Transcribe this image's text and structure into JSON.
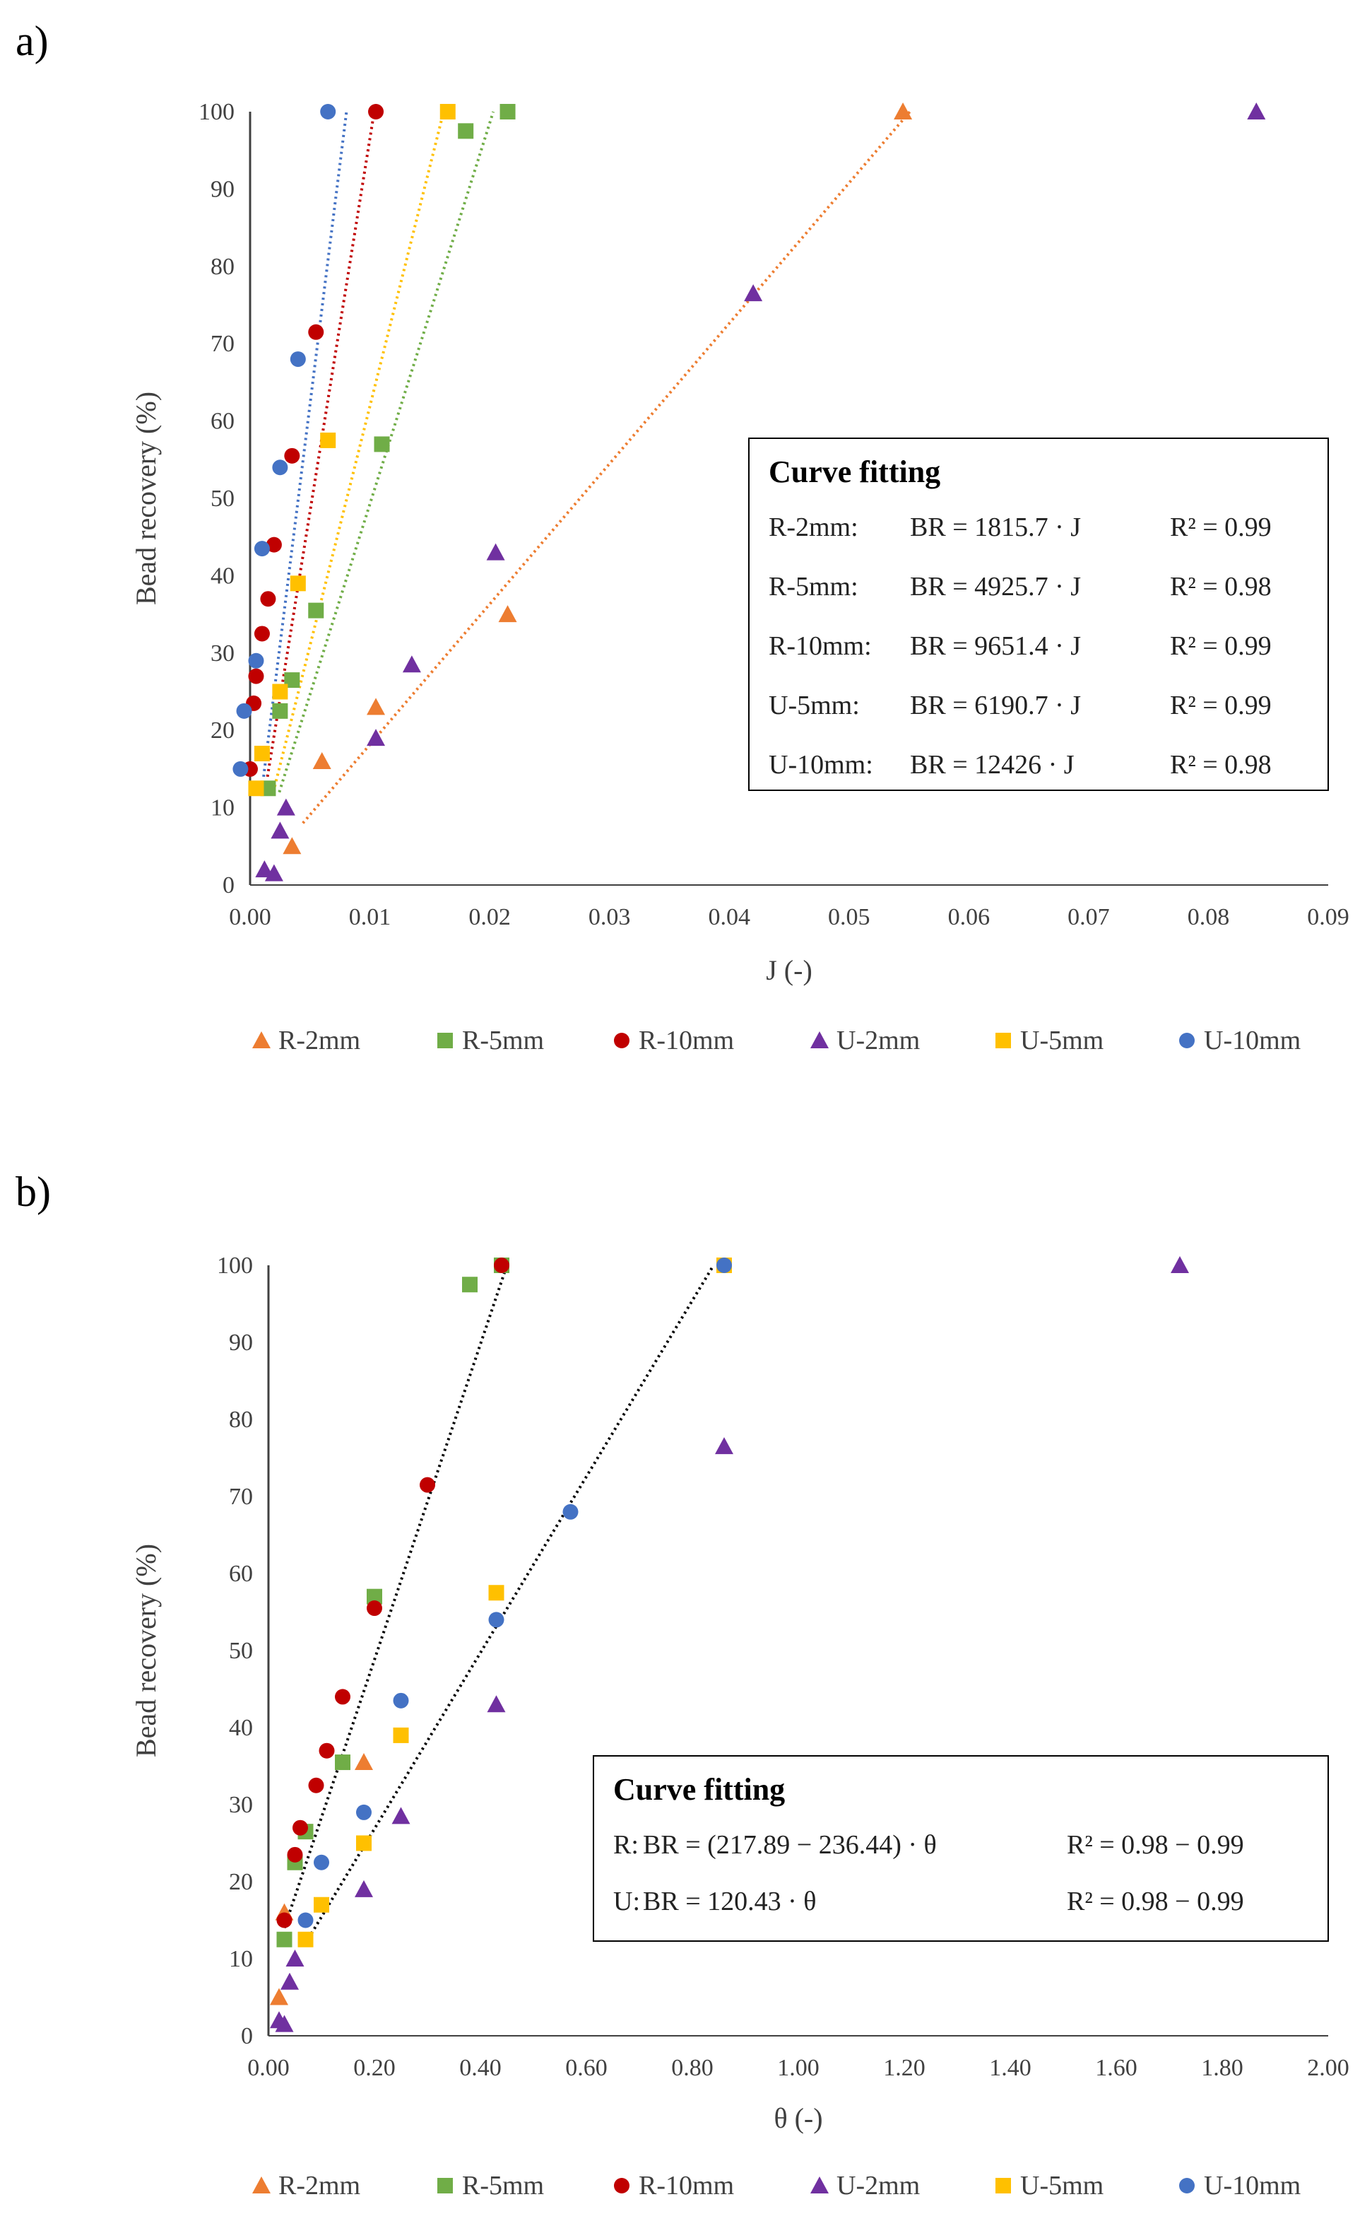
{
  "colors": {
    "R-2mm": "#ED7D31",
    "R-5mm": "#70AD47",
    "R-10mm": "#C00000",
    "U-2mm": "#7030A0",
    "U-5mm": "#FFC000",
    "U-10mm": "#4472C4",
    "axis": "#404040"
  },
  "chart_data": [
    {
      "type": "scatter",
      "panel_label": "a)",
      "title": "",
      "xlabel": "J (-)",
      "ylabel": "Bead recovery (%)",
      "xlim": [
        0,
        0.09
      ],
      "ylim": [
        0,
        100
      ],
      "xticks": [
        "0.00",
        "0.01",
        "0.02",
        "0.03",
        "0.04",
        "0.05",
        "0.06",
        "0.07",
        "0.08",
        "0.09"
      ],
      "yticks": [
        "0",
        "10",
        "20",
        "30",
        "40",
        "50",
        "60",
        "70",
        "80",
        "90",
        "100"
      ],
      "legend": [
        "R-2mm",
        "R-5mm",
        "R-10mm",
        "U-2mm",
        "U-5mm",
        "U-10mm"
      ],
      "legend_position": "bottom",
      "series": [
        {
          "name": "R-2mm",
          "marker": "triangle",
          "points": [
            [
              0.0545,
              100
            ],
            [
              0.0215,
              35
            ],
            [
              0.0105,
              23
            ],
            [
              0.006,
              16
            ],
            [
              0.0035,
              5
            ]
          ]
        },
        {
          "name": "R-5mm",
          "marker": "square",
          "points": [
            [
              0.0215,
              100
            ],
            [
              0.018,
              97.5
            ],
            [
              0.011,
              57
            ],
            [
              0.0055,
              35.5
            ],
            [
              0.0035,
              26.5
            ],
            [
              0.0025,
              22.5
            ],
            [
              0.0015,
              12.5
            ]
          ]
        },
        {
          "name": "R-10mm",
          "marker": "circle",
          "points": [
            [
              0.0105,
              100
            ],
            [
              0.0055,
              71.5
            ],
            [
              0.0035,
              55.5
            ],
            [
              0.002,
              44
            ],
            [
              0.0015,
              37
            ],
            [
              0.001,
              32.5
            ],
            [
              0.0005,
              27
            ],
            [
              0.0003,
              23.5
            ],
            [
              0,
              15
            ]
          ]
        },
        {
          "name": "U-2mm",
          "marker": "triangle",
          "points": [
            [
              0.084,
              100
            ],
            [
              0.042,
              76.5
            ],
            [
              0.0205,
              43
            ],
            [
              0.0135,
              28.5
            ],
            [
              0.0105,
              19
            ],
            [
              0.003,
              10
            ],
            [
              0.0025,
              7
            ],
            [
              0.0012,
              2
            ],
            [
              0.002,
              1.5
            ]
          ]
        },
        {
          "name": "U-5mm",
          "marker": "square",
          "points": [
            [
              0.0165,
              100
            ],
            [
              0.0065,
              57.5
            ],
            [
              0.004,
              39
            ],
            [
              0.0025,
              25
            ],
            [
              0.001,
              17
            ],
            [
              0.0005,
              12.5
            ]
          ]
        },
        {
          "name": "U-10mm",
          "marker": "circle",
          "points": [
            [
              0.0065,
              100
            ],
            [
              0.004,
              68
            ],
            [
              0.0025,
              54
            ],
            [
              0.001,
              43.5
            ],
            [
              0.0005,
              29
            ],
            [
              -0.0005,
              22.5
            ],
            [
              -0.0008,
              15
            ]
          ]
        }
      ],
      "fits": [
        {
          "name": "R-2mm",
          "slope": 1815.7,
          "from_y": 8,
          "color_of": "R-2mm"
        },
        {
          "name": "R-5mm",
          "slope": 4925.7,
          "from_y": 12,
          "color_of": "R-5mm"
        },
        {
          "name": "R-10mm",
          "slope": 9651.4,
          "from_y": 14,
          "color_of": "R-10mm"
        },
        {
          "name": "U-5mm",
          "slope": 6190.7,
          "from_y": 12,
          "color_of": "U-5mm"
        },
        {
          "name": "U-10mm",
          "slope": 12426,
          "from_y": 14,
          "color_of": "U-10mm"
        }
      ],
      "fit_box": {
        "title": "Curve fitting",
        "rows": [
          {
            "label": "R-2mm:",
            "eq": "BR = 1815.7 · J",
            "r2": "R² = 0.99"
          },
          {
            "label": "R-5mm:",
            "eq": "BR = 4925.7 · J",
            "r2": "R² = 0.98"
          },
          {
            "label": "R-10mm:",
            "eq": "BR = 9651.4 · J",
            "r2": "R² = 0.99"
          },
          {
            "label": "U-5mm:",
            "eq": "BR = 6190.7 · J",
            "r2": "R² = 0.99"
          },
          {
            "label": "U-10mm:",
            "eq": "BR = 12426 · J",
            "r2": "R² = 0.98"
          }
        ]
      }
    },
    {
      "type": "scatter",
      "panel_label": "b)",
      "title": "",
      "xlabel": "θ (-)",
      "ylabel": "Bead recovery (%)",
      "xlim": [
        0,
        2
      ],
      "ylim": [
        0,
        100
      ],
      "xticks": [
        "0.00",
        "0.20",
        "0.40",
        "0.60",
        "0.80",
        "1.00",
        "1.20",
        "1.40",
        "1.60",
        "1.80",
        "2.00"
      ],
      "yticks": [
        "0",
        "10",
        "20",
        "30",
        "40",
        "50",
        "60",
        "70",
        "80",
        "90",
        "100"
      ],
      "legend": [
        "R-2mm",
        "R-5mm",
        "R-10mm",
        "U-2mm",
        "U-5mm",
        "U-10mm"
      ],
      "legend_position": "bottom",
      "series": [
        {
          "name": "R-2mm",
          "marker": "triangle",
          "points": [
            [
              0.02,
              5
            ],
            [
              0.03,
              16
            ],
            [
              0.18,
              35.5
            ]
          ]
        },
        {
          "name": "R-5mm",
          "marker": "square",
          "points": [
            [
              0.44,
              100
            ],
            [
              0.38,
              97.5
            ],
            [
              0.2,
              57
            ],
            [
              0.14,
              35.5
            ],
            [
              0.07,
              26.5
            ],
            [
              0.05,
              22.5
            ],
            [
              0.03,
              12.5
            ]
          ]
        },
        {
          "name": "R-10mm",
          "marker": "circle",
          "points": [
            [
              0.44,
              100
            ],
            [
              0.3,
              71.5
            ],
            [
              0.2,
              55.5
            ],
            [
              0.14,
              44
            ],
            [
              0.11,
              37
            ],
            [
              0.09,
              32.5
            ],
            [
              0.06,
              27
            ],
            [
              0.05,
              23.5
            ],
            [
              0.03,
              15
            ]
          ]
        },
        {
          "name": "U-2mm",
          "marker": "triangle",
          "points": [
            [
              1.72,
              100
            ],
            [
              0.86,
              76.5
            ],
            [
              0.43,
              43
            ],
            [
              0.25,
              28.5
            ],
            [
              0.18,
              19
            ],
            [
              0.05,
              10
            ],
            [
              0.04,
              7
            ],
            [
              0.02,
              2
            ],
            [
              0.03,
              1.5
            ]
          ]
        },
        {
          "name": "U-5mm",
          "marker": "square",
          "points": [
            [
              0.86,
              100
            ],
            [
              0.43,
              57.5
            ],
            [
              0.25,
              39
            ],
            [
              0.18,
              25
            ],
            [
              0.1,
              17
            ],
            [
              0.07,
              12.5
            ]
          ]
        },
        {
          "name": "U-10mm",
          "marker": "circle",
          "points": [
            [
              0.86,
              100
            ],
            [
              0.57,
              68
            ],
            [
              0.43,
              54
            ],
            [
              0.25,
              43.5
            ],
            [
              0.18,
              29
            ],
            [
              0.1,
              22.5
            ],
            [
              0.07,
              15
            ]
          ]
        }
      ],
      "fits": [
        {
          "name": "R",
          "points": [
            [
              0.03,
              14
            ],
            [
              0.45,
              100
            ]
          ]
        },
        {
          "name": "U",
          "points": [
            [
              0.07,
              12
            ],
            [
              0.84,
              100
            ]
          ]
        }
      ],
      "fit_box": {
        "title": "Curve fitting",
        "rows": [
          {
            "label": "R:",
            "eq": "BR = (217.89 − 236.44) · θ",
            "r2": "R² = 0.98 − 0.99"
          },
          {
            "label": "U:",
            "eq": "BR = 120.43 · θ",
            "r2": "R² = 0.98 − 0.99"
          }
        ]
      }
    }
  ]
}
